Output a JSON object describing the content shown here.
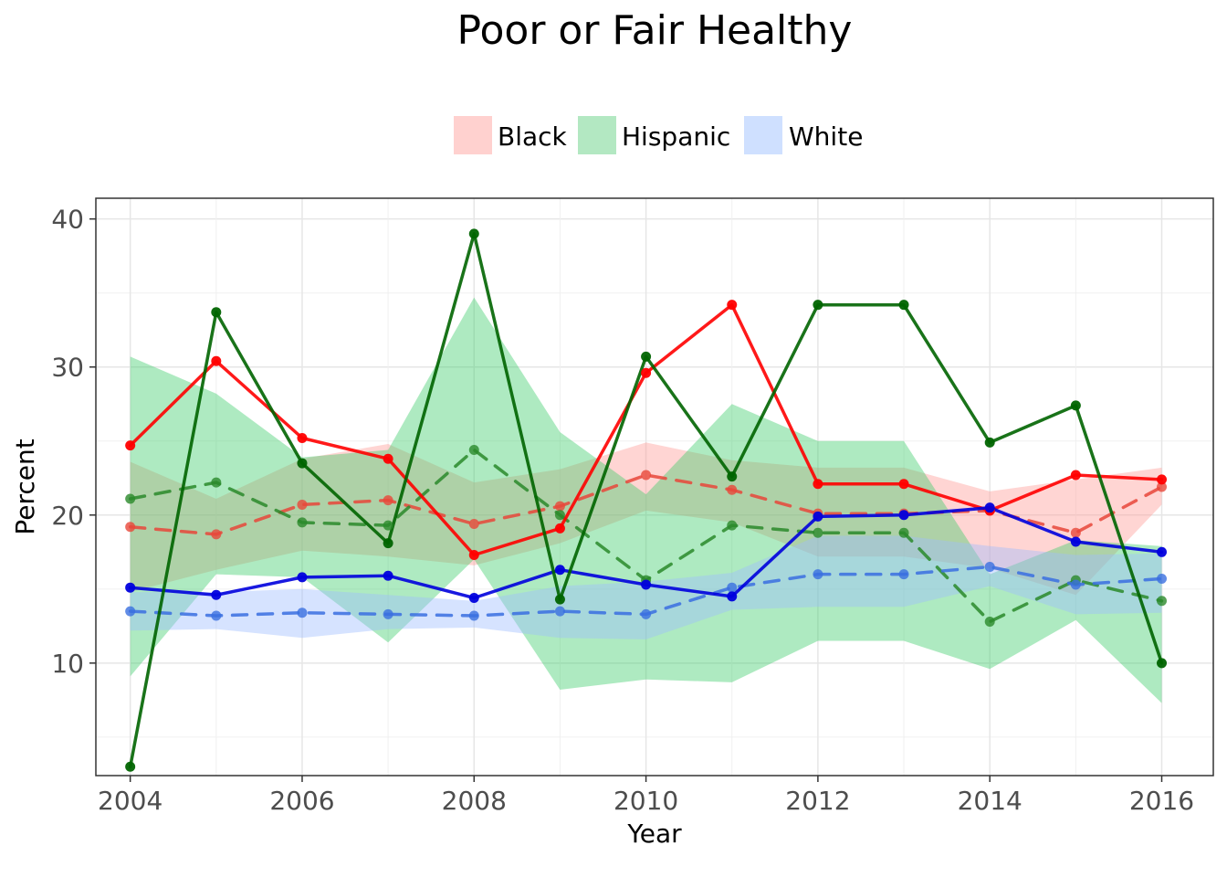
{
  "chart_data": {
    "type": "line",
    "title": "Poor or Fair Healthy",
    "xlabel": "Year",
    "ylabel": "Percent",
    "xlim": [
      2003.6,
      2016.6
    ],
    "ylim": [
      2.4,
      41.4
    ],
    "x_ticks": [
      2004,
      2006,
      2008,
      2010,
      2012,
      2014,
      2016
    ],
    "x_tick_labels": [
      "2004",
      "2006",
      "2008",
      "2010",
      "2012",
      "2014",
      "2016"
    ],
    "y_ticks": [
      10,
      20,
      30,
      40
    ],
    "y_tick_labels": [
      "10",
      "20",
      "30",
      "40"
    ],
    "grid": true,
    "legend_position": "top",
    "legend": [
      {
        "label": "Black",
        "color": "#ff0000"
      },
      {
        "label": "Hispanic",
        "color": "#1db04d"
      },
      {
        "label": "White",
        "color": "#4d8cff"
      }
    ],
    "x": [
      2004,
      2005,
      2006,
      2007,
      2008,
      2009,
      2010,
      2011,
      2012,
      2013,
      2014,
      2015,
      2016
    ],
    "series": [
      {
        "group": "Black",
        "style": "solid",
        "color": "#ff0000",
        "values": [
          24.7,
          30.4,
          25.2,
          23.8,
          17.3,
          19.1,
          29.6,
          34.2,
          22.1,
          22.1,
          20.3,
          22.7,
          22.4
        ]
      },
      {
        "group": "Hispanic",
        "style": "solid",
        "color": "#006400",
        "values": [
          3.0,
          33.7,
          23.5,
          18.1,
          39.0,
          14.3,
          30.7,
          22.6,
          34.2,
          34.2,
          24.9,
          27.4,
          10.0
        ]
      },
      {
        "group": "White",
        "style": "solid",
        "color": "#0000dd",
        "values": [
          15.1,
          14.6,
          15.8,
          15.9,
          14.4,
          16.3,
          15.3,
          14.5,
          19.9,
          20.0,
          20.5,
          18.2,
          17.5
        ]
      },
      {
        "group": "Black",
        "style": "dashed",
        "color": "#e8473a",
        "values": [
          19.2,
          18.7,
          20.7,
          21.0,
          19.4,
          20.6,
          22.7,
          21.7,
          20.1,
          20.1,
          20.3,
          18.8,
          21.9
        ],
        "band_lower": [
          14.8,
          16.3,
          17.6,
          17.2,
          16.6,
          18.1,
          20.3,
          19.5,
          17.2,
          17.2,
          16.4,
          14.6,
          20.7
        ],
        "band_upper": [
          23.6,
          21.1,
          23.8,
          24.8,
          22.2,
          23.1,
          24.9,
          23.7,
          23.2,
          23.2,
          21.6,
          22.4,
          23.2
        ]
      },
      {
        "group": "Hispanic",
        "style": "dashed",
        "color": "#2a8a2a",
        "values": [
          21.1,
          22.2,
          19.5,
          19.3,
          24.4,
          20.0,
          15.6,
          19.3,
          18.8,
          18.8,
          12.8,
          15.6,
          14.2
        ],
        "band_lower": [
          9.1,
          16.0,
          15.8,
          11.4,
          17.0,
          8.2,
          8.9,
          8.7,
          11.5,
          11.5,
          9.6,
          12.9,
          7.3
        ],
        "band_upper": [
          30.7,
          28.2,
          23.9,
          24.4,
          34.7,
          25.6,
          21.4,
          27.5,
          25.0,
          25.0,
          16.0,
          18.3,
          17.9
        ]
      },
      {
        "group": "White",
        "style": "dashed",
        "color": "#3a6fe0",
        "values": [
          13.5,
          13.2,
          13.4,
          13.3,
          13.2,
          13.5,
          13.3,
          15.1,
          16.0,
          16.0,
          16.5,
          15.3,
          15.7
        ],
        "band_lower": [
          12.2,
          12.3,
          11.7,
          12.3,
          12.4,
          11.7,
          11.6,
          13.6,
          13.8,
          13.8,
          15.2,
          13.3,
          13.4
        ],
        "band_upper": [
          14.8,
          14.8,
          15.0,
          14.6,
          14.2,
          15.2,
          15.5,
          16.1,
          18.6,
          18.6,
          17.9,
          17.3,
          17.4
        ]
      }
    ]
  }
}
